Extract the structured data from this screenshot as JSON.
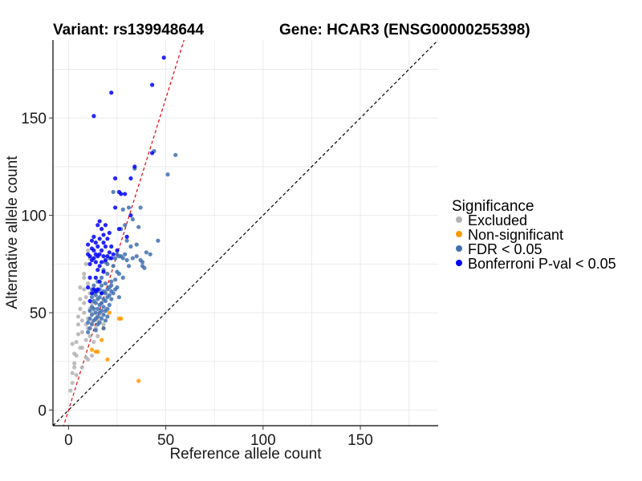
{
  "chart_data": {
    "type": "scatter",
    "title_left": "Variant: rs139948644",
    "title_right": "Gene: HCAR3 (ENSG00000255398)",
    "xlabel": "Reference allele count",
    "ylabel": "Alternative allele count",
    "xlim": [
      -8,
      190
    ],
    "ylim": [
      -8,
      190
    ],
    "xticks": [
      0,
      50,
      100,
      150
    ],
    "yticks": [
      0,
      50,
      100,
      150
    ],
    "xtick_labels": [
      "0",
      "50",
      "100",
      "150"
    ],
    "ytick_labels": [
      "0",
      "50",
      "100",
      "150"
    ],
    "grid": true,
    "reference_lines": [
      {
        "name": "identity-line",
        "slope": 1,
        "intercept": 0,
        "color": "#000000",
        "style": "dashed"
      },
      {
        "name": "fit-line",
        "slope": 3.2,
        "intercept": 0,
        "color": "#e8000b",
        "style": "dashed"
      }
    ],
    "legend": {
      "title": "Significance",
      "position": "right",
      "entries": [
        {
          "label": "Excluded",
          "color": "#b3b3b3"
        },
        {
          "label": "Non-significant",
          "color": "#ff9900"
        },
        {
          "label": "FDR < 0.05",
          "color": "#3f6fb0"
        },
        {
          "label": "Bonferroni P-val < 0.05",
          "color": "#0000ff"
        }
      ]
    },
    "series": [
      {
        "name": "Excluded",
        "color": "#b3b3b3",
        "points": [
          [
            1,
            10
          ],
          [
            2,
            14
          ],
          [
            2,
            19
          ],
          [
            3,
            24
          ],
          [
            3,
            29
          ],
          [
            4,
            28
          ],
          [
            4,
            35
          ],
          [
            5,
            39
          ],
          [
            5,
            44
          ],
          [
            5,
            48
          ],
          [
            6,
            52
          ],
          [
            6,
            57
          ],
          [
            7,
            32
          ],
          [
            7,
            40
          ],
          [
            7,
            46
          ],
          [
            8,
            50
          ],
          [
            8,
            55
          ],
          [
            8,
            62
          ],
          [
            8,
            70
          ],
          [
            9,
            36
          ],
          [
            9,
            44
          ],
          [
            9,
            58
          ],
          [
            9,
            75
          ],
          [
            10,
            42
          ],
          [
            10,
            47
          ],
          [
            10,
            65
          ],
          [
            10,
            82
          ],
          [
            11,
            38
          ],
          [
            11,
            52
          ],
          [
            11,
            60
          ],
          [
            11,
            78
          ],
          [
            12,
            45
          ],
          [
            12,
            55
          ],
          [
            13,
            35
          ],
          [
            13,
            50
          ],
          [
            14,
            42
          ],
          [
            15,
            38
          ],
          [
            15,
            46
          ],
          [
            16,
            48
          ],
          [
            18,
            44
          ],
          [
            6,
            32
          ],
          [
            7,
            22
          ],
          [
            4,
            18
          ],
          [
            3,
            22
          ],
          [
            2,
            34
          ],
          [
            9,
            27
          ],
          [
            10,
            26
          ],
          [
            6,
            63
          ],
          [
            8,
            68
          ],
          [
            12,
            28
          ]
        ]
      },
      {
        "name": "Non-significant",
        "color": "#ff9900",
        "points": [
          [
            14,
            30
          ],
          [
            15,
            30
          ],
          [
            17,
            36
          ],
          [
            21,
            50
          ],
          [
            26,
            47
          ],
          [
            27,
            47
          ],
          [
            20,
            26
          ],
          [
            36,
            15
          ],
          [
            12,
            31
          ],
          [
            18,
            42
          ]
        ]
      },
      {
        "name": "FDR < 0.05",
        "color": "#3f6fb0",
        "points": [
          [
            10,
            40
          ],
          [
            10,
            45
          ],
          [
            11,
            42
          ],
          [
            11,
            47
          ],
          [
            11,
            51
          ],
          [
            12,
            44
          ],
          [
            12,
            49
          ],
          [
            12,
            53
          ],
          [
            12,
            58
          ],
          [
            12,
            62
          ],
          [
            13,
            46
          ],
          [
            13,
            52
          ],
          [
            13,
            56
          ],
          [
            13,
            60
          ],
          [
            13,
            64
          ],
          [
            14,
            41
          ],
          [
            14,
            47
          ],
          [
            14,
            50
          ],
          [
            14,
            55
          ],
          [
            14,
            59
          ],
          [
            15,
            44
          ],
          [
            15,
            48
          ],
          [
            15,
            52
          ],
          [
            15,
            57
          ],
          [
            15,
            61
          ],
          [
            15,
            66
          ],
          [
            16,
            45
          ],
          [
            16,
            50
          ],
          [
            16,
            54
          ],
          [
            16,
            58
          ],
          [
            16,
            62
          ],
          [
            17,
            47
          ],
          [
            17,
            51
          ],
          [
            17,
            55
          ],
          [
            17,
            60
          ],
          [
            17,
            64
          ],
          [
            17,
            68
          ],
          [
            18,
            42
          ],
          [
            18,
            49
          ],
          [
            18,
            53
          ],
          [
            18,
            57
          ],
          [
            18,
            61
          ],
          [
            18,
            72
          ],
          [
            19,
            46
          ],
          [
            19,
            51
          ],
          [
            19,
            56
          ],
          [
            19,
            60
          ],
          [
            19,
            65
          ],
          [
            19,
            76
          ],
          [
            20,
            48
          ],
          [
            20,
            52
          ],
          [
            20,
            58
          ],
          [
            20,
            62
          ],
          [
            20,
            70
          ],
          [
            20,
            75
          ],
          [
            21,
            54
          ],
          [
            21,
            59
          ],
          [
            21,
            63
          ],
          [
            21,
            78
          ],
          [
            22,
            57
          ],
          [
            22,
            61
          ],
          [
            22,
            64
          ],
          [
            23,
            60
          ],
          [
            23,
            74
          ],
          [
            24,
            62
          ],
          [
            24,
            78
          ],
          [
            25,
            63
          ],
          [
            25,
            71
          ],
          [
            25,
            80
          ],
          [
            26,
            58
          ],
          [
            26,
            79
          ],
          [
            27,
            79
          ],
          [
            28,
            78
          ],
          [
            29,
            80
          ],
          [
            30,
            77
          ],
          [
            32,
            84
          ],
          [
            33,
            78
          ],
          [
            35,
            79
          ],
          [
            37,
            77
          ],
          [
            38,
            74
          ],
          [
            38,
            76
          ],
          [
            39,
            73
          ],
          [
            40,
            81
          ],
          [
            42,
            80
          ],
          [
            46,
            87
          ],
          [
            29,
            95
          ],
          [
            31,
            104
          ],
          [
            36,
            94
          ],
          [
            37,
            104
          ],
          [
            51,
            121
          ],
          [
            55,
            131
          ],
          [
            44,
            133
          ],
          [
            34,
            124
          ],
          [
            23,
            112
          ],
          [
            28,
            103
          ],
          [
            27,
            93
          ],
          [
            30,
            87
          ],
          [
            33,
            98
          ],
          [
            35,
            85
          ],
          [
            26,
            70
          ],
          [
            24,
            67
          ],
          [
            22,
            66
          ],
          [
            28,
            68
          ],
          [
            31,
            74
          ]
        ]
      },
      {
        "name": "Bonferroni P-val < 0.05",
        "color": "#0000ff",
        "points": [
          [
            10,
            80
          ],
          [
            10,
            85
          ],
          [
            11,
            68
          ],
          [
            11,
            75
          ],
          [
            11,
            79
          ],
          [
            12,
            77
          ],
          [
            12,
            83
          ],
          [
            12,
            87
          ],
          [
            13,
            78
          ],
          [
            13,
            82
          ],
          [
            13,
            89
          ],
          [
            14,
            76
          ],
          [
            14,
            80
          ],
          [
            14,
            86
          ],
          [
            15,
            62
          ],
          [
            15,
            72
          ],
          [
            15,
            79
          ],
          [
            15,
            84
          ],
          [
            15,
            95
          ],
          [
            16,
            74
          ],
          [
            16,
            80
          ],
          [
            16,
            88
          ],
          [
            16,
            97
          ],
          [
            17,
            76
          ],
          [
            17,
            82
          ],
          [
            17,
            93
          ],
          [
            18,
            71
          ],
          [
            18,
            79
          ],
          [
            18,
            86
          ],
          [
            18,
            90
          ],
          [
            19,
            77
          ],
          [
            19,
            84
          ],
          [
            19,
            95
          ],
          [
            20,
            79
          ],
          [
            20,
            88
          ],
          [
            21,
            81
          ],
          [
            21,
            91
          ],
          [
            22,
            84
          ],
          [
            22,
            78
          ],
          [
            23,
            80
          ],
          [
            24,
            104
          ],
          [
            24,
            119
          ],
          [
            25,
            82
          ],
          [
            26,
            93
          ],
          [
            26,
            112
          ],
          [
            27,
            111
          ],
          [
            29,
            111
          ],
          [
            30,
            89
          ],
          [
            32,
            100
          ],
          [
            32,
            119
          ],
          [
            34,
            125
          ],
          [
            43,
            132
          ],
          [
            43,
            167
          ],
          [
            49,
            181
          ],
          [
            22,
            163
          ],
          [
            13,
            151
          ],
          [
            14,
            61
          ],
          [
            13,
            62
          ],
          [
            12,
            60
          ],
          [
            16,
            66
          ],
          [
            10,
            63
          ],
          [
            17,
            60
          ],
          [
            11,
            56
          ],
          [
            14,
            68
          ]
        ]
      }
    ]
  }
}
